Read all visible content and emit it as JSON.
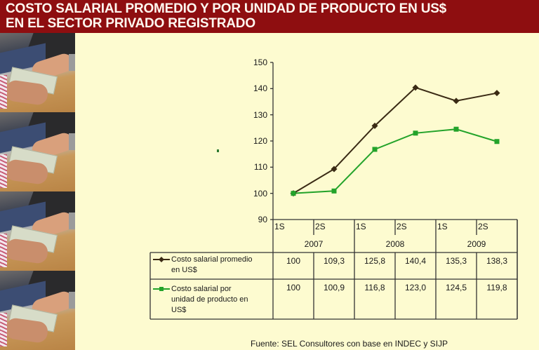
{
  "header": {
    "title_line1": "COSTO SALARIAL PROMEDIO Y POR UNIDAD DE PRODUCTO EN US$",
    "title_line2": "EN EL SECTOR PRIVADO REGISTRADO"
  },
  "colors": {
    "header_bg": "#8e0e10",
    "page_bg": "#fdfbd0",
    "series1": "#3a2a14",
    "series2": "#23a32a"
  },
  "photos": [
    {
      "alt": "hands-exchanging-dollars-photo"
    },
    {
      "alt": "hands-exchanging-dollars-photo"
    },
    {
      "alt": "hands-exchanging-dollars-photo"
    },
    {
      "alt": "hands-exchanging-dollars-photo"
    }
  ],
  "chart_data": {
    "type": "line",
    "title": "COSTO SALARIAL PROMEDIO Y POR UNIDAD DE PRODUCTO EN US$ EN EL SECTOR PRIVADO REGISTRADO",
    "xlabel": "",
    "ylabel": "",
    "ylim": [
      90,
      150
    ],
    "yticks": [
      "150",
      "140",
      "130",
      "120",
      "110",
      "100",
      "90"
    ],
    "categories": [
      "1S 2007",
      "2S 2007",
      "1S 2008",
      "2S 2008",
      "1S 2009",
      "2S 2009"
    ],
    "semesters": [
      "1S",
      "2S",
      "1S",
      "2S",
      "1S",
      "2S"
    ],
    "years": [
      "2007",
      "2008",
      "2009"
    ],
    "grid": false,
    "legend_position": "data-table",
    "series": [
      {
        "name": "Costo salarial promedio en US$",
        "name_line1": "Costo salarial promedio",
        "name_line2": "en US$",
        "marker": "diamond",
        "values": [
          100,
          109.3,
          125.8,
          140.4,
          135.3,
          138.3
        ],
        "labels": [
          "100",
          "109,3",
          "125,8",
          "140,4",
          "135,3",
          "138,3"
        ]
      },
      {
        "name": "Costo salarial por unidad de producto en US$",
        "name_line1": "Costo salarial por",
        "name_line2": "unidad de producto en",
        "name_line3": "US$",
        "marker": "square",
        "values": [
          100,
          100.9,
          116.8,
          123.0,
          124.5,
          119.8
        ],
        "labels": [
          "100",
          "100,9",
          "116,8",
          "123,0",
          "124,5",
          "119,8"
        ]
      }
    ]
  },
  "footer": {
    "source": "Fuente: SEL Consultores con base en INDEC y SIJP"
  }
}
